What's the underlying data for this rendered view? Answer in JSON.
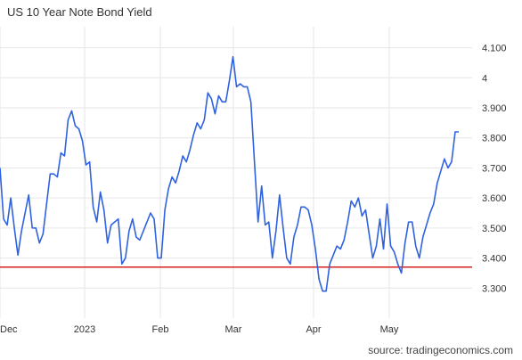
{
  "chart_data": {
    "type": "line",
    "title": "US 10 Year Note Bond Yield",
    "source": "source: tradingeconomics.com",
    "xlabel": "",
    "ylabel": "",
    "x_ticks": [
      "Dec",
      "2023",
      "Feb",
      "Mar",
      "Apr",
      "May"
    ],
    "y_ticks": [
      "3.300",
      "3.400",
      "3.500",
      "3.600",
      "3.700",
      "3.800",
      "3.900",
      "4",
      "4.100"
    ],
    "ylim": [
      3.2,
      4.17
    ],
    "grid": true,
    "colors": {
      "line": "#2f62e0",
      "reference": "#d62020",
      "grid": "#e6e6e6"
    },
    "reference_line": 3.37,
    "series": [
      {
        "values": [
          3.7,
          3.53,
          3.51,
          3.6,
          3.5,
          3.41,
          3.49,
          3.55,
          3.61,
          3.5,
          3.5,
          3.45,
          3.48,
          3.58,
          3.68,
          3.68,
          3.67,
          3.75,
          3.74,
          3.86,
          3.89,
          3.84,
          3.83,
          3.79,
          3.71,
          3.72,
          3.57,
          3.52,
          3.62,
          3.56,
          3.45,
          3.51,
          3.52,
          3.53,
          3.38,
          3.4,
          3.49,
          3.53,
          3.47,
          3.46,
          3.49,
          3.52,
          3.55,
          3.53,
          3.4,
          3.4,
          3.56,
          3.63,
          3.67,
          3.65,
          3.69,
          3.74,
          3.72,
          3.76,
          3.81,
          3.85,
          3.83,
          3.86,
          3.95,
          3.93,
          3.88,
          3.94,
          3.92,
          3.92,
          3.99,
          4.07,
          3.97,
          3.98,
          3.97,
          3.97,
          3.92,
          3.72,
          3.52,
          3.64,
          3.51,
          3.52,
          3.4,
          3.49,
          3.61,
          3.5,
          3.4,
          3.38,
          3.47,
          3.51,
          3.57,
          3.57,
          3.56,
          3.51,
          3.43,
          3.33,
          3.29,
          3.29,
          3.38,
          3.41,
          3.44,
          3.43,
          3.46,
          3.52,
          3.59,
          3.57,
          3.6,
          3.54,
          3.56,
          3.48,
          3.4,
          3.44,
          3.53,
          3.43,
          3.58,
          3.44,
          3.42,
          3.38,
          3.35,
          3.45,
          3.52,
          3.52,
          3.44,
          3.4,
          3.47,
          3.51,
          3.55,
          3.58,
          3.65,
          3.69,
          3.73,
          3.7,
          3.72,
          3.82,
          3.82
        ]
      }
    ]
  }
}
